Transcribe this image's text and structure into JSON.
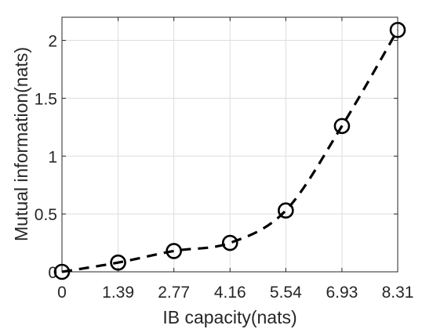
{
  "chart_data": {
    "type": "line",
    "title": "",
    "xlabel": "IB capacity(nats)",
    "ylabel": "Mutual information(nats)",
    "x": [
      0,
      1.39,
      2.77,
      4.16,
      5.54,
      6.93,
      8.31
    ],
    "x_tick_labels": [
      "0",
      "1.39",
      "2.77",
      "4.16",
      "5.54",
      "6.93",
      "8.31"
    ],
    "y_ticks": [
      0,
      0.5,
      1,
      1.5,
      2
    ],
    "y_tick_labels": [
      "0",
      "0.5",
      "1",
      "1.5",
      "2"
    ],
    "xlim": [
      0,
      8.31
    ],
    "ylim": [
      0,
      2.2
    ],
    "grid": true,
    "series": [
      {
        "values": [
          0.0,
          0.08,
          0.18,
          0.25,
          0.53,
          1.26,
          2.09
        ],
        "line_style": "dashed",
        "marker": "circle",
        "color": "#000000"
      }
    ]
  }
}
